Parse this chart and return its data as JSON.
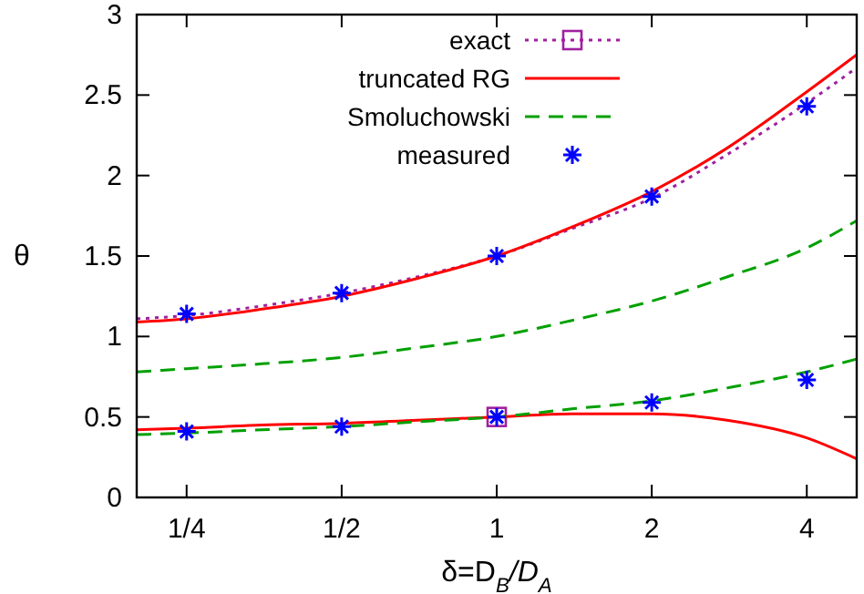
{
  "chart_data": {
    "type": "line",
    "xlabel": "δ=D$_{B}$/D$_{A}$",
    "ylabel": "θ",
    "log": "x",
    "xlim": [
      0.2,
      5
    ],
    "ylim": [
      0,
      3
    ],
    "xticks": [
      {
        "value": 0.25,
        "label": "1/4"
      },
      {
        "value": 0.5,
        "label": "1/2"
      },
      1,
      2,
      4
    ],
    "yticks": [
      0,
      0.5,
      1,
      1.5,
      2,
      2.5,
      3
    ],
    "legend": "top left",
    "grid": false,
    "series": [
      {
        "name": "exact",
        "color": "#a020a0",
        "line_style": "dotted",
        "marker": "none",
        "x": [
          0.2,
          0.25,
          0.35,
          0.5,
          0.7,
          1,
          1.4,
          2,
          2.8,
          4,
          5
        ],
        "values": [
          1.11,
          1.13,
          1.19,
          1.27,
          1.37,
          1.5,
          1.67,
          1.86,
          2.13,
          2.45,
          2.67
        ]
      },
      {
        "type": "scatter",
        "color": "#a020a0",
        "marker": "square",
        "x": [
          1
        ],
        "values": [
          0.5
        ]
      },
      {
        "name": "truncated RG",
        "color": "#ff0000",
        "line_style": "solid",
        "marker": "none",
        "x": [
          0.2,
          0.25,
          0.35,
          0.5,
          0.7,
          1,
          1.4,
          2,
          2.8,
          4,
          5,
          null,
          0.2,
          0.25,
          0.35,
          0.5,
          0.7,
          1,
          1.4,
          2,
          2.8,
          4,
          5
        ],
        "values": [
          1.09,
          1.11,
          1.17,
          1.25,
          1.36,
          1.5,
          1.68,
          1.9,
          2.17,
          2.52,
          2.75,
          null,
          0.42,
          0.43,
          0.45,
          0.46,
          0.48,
          0.5,
          0.52,
          0.52,
          0.48,
          0.37,
          0.24
        ]
      },
      {
        "name": "Smoluchowski",
        "color": "#00a000",
        "line_style": "dashed",
        "marker": "none",
        "x": [
          0.2,
          0.25,
          0.35,
          0.5,
          0.7,
          1,
          1.4,
          2,
          2.8,
          4,
          5,
          null,
          0.2,
          0.25,
          0.35,
          0.5,
          0.7,
          1,
          1.4,
          2,
          2.8,
          4,
          5
        ],
        "values": [
          0.78,
          0.8,
          0.83,
          0.87,
          0.93,
          1.0,
          1.1,
          1.22,
          1.37,
          1.55,
          1.72,
          null,
          0.39,
          0.4,
          0.42,
          0.44,
          0.47,
          0.5,
          0.55,
          0.6,
          0.68,
          0.78,
          0.86
        ]
      },
      {
        "name": "measured",
        "type": "scatter",
        "color": "#0000ff",
        "marker": "cross",
        "x": [
          0.25,
          0.5,
          1,
          2,
          4,
          0.25,
          0.5,
          1,
          2,
          4
        ],
        "values": [
          1.14,
          1.27,
          1.5,
          1.87,
          2.43,
          0.41,
          0.44,
          0.5,
          0.59,
          0.73
        ]
      }
    ]
  }
}
